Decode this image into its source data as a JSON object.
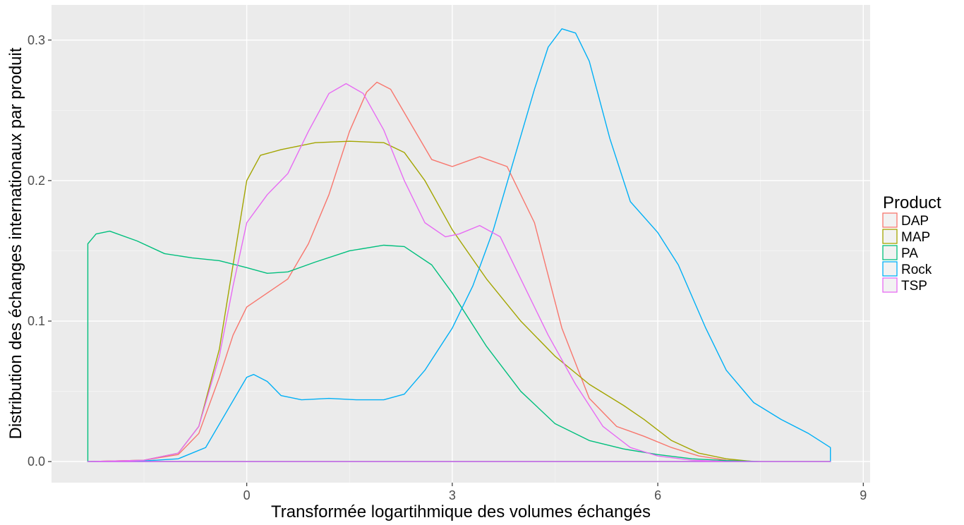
{
  "chart_data": {
    "type": "area",
    "xlabel": "Transformée logartihmique des volumes échangés",
    "ylabel": "Distribution des échanges internationaux par produit",
    "xlim": [
      -2.85,
      9.1
    ],
    "ylim": [
      -0.015,
      0.325
    ],
    "x_ticks": [
      0,
      3,
      6,
      9
    ],
    "x_tick_labels": [
      "0",
      "3",
      "6",
      "9"
    ],
    "y_ticks": [
      0.0,
      0.1,
      0.2,
      0.3
    ],
    "y_tick_labels": [
      "0.0",
      "0.1",
      "0.2",
      "0.3"
    ],
    "grid": true,
    "legend": {
      "title": "Product",
      "position": "right"
    },
    "x_range": [
      -2.32,
      8.52
    ],
    "series": [
      {
        "name": "DAP",
        "color": "#F8766D",
        "points": [
          [
            -2.32,
            0
          ],
          [
            -1.5,
            0.001
          ],
          [
            -1.0,
            0.005
          ],
          [
            -0.7,
            0.02
          ],
          [
            -0.4,
            0.06
          ],
          [
            -0.2,
            0.09
          ],
          [
            0,
            0.11
          ],
          [
            0.3,
            0.12
          ],
          [
            0.6,
            0.13
          ],
          [
            0.9,
            0.155
          ],
          [
            1.2,
            0.19
          ],
          [
            1.5,
            0.235
          ],
          [
            1.75,
            0.263
          ],
          [
            1.9,
            0.27
          ],
          [
            2.1,
            0.265
          ],
          [
            2.4,
            0.24
          ],
          [
            2.7,
            0.215
          ],
          [
            3.0,
            0.21
          ],
          [
            3.4,
            0.217
          ],
          [
            3.8,
            0.21
          ],
          [
            4.2,
            0.17
          ],
          [
            4.6,
            0.095
          ],
          [
            5.0,
            0.045
          ],
          [
            5.4,
            0.025
          ],
          [
            5.8,
            0.018
          ],
          [
            6.2,
            0.01
          ],
          [
            6.6,
            0.004
          ],
          [
            7.0,
            0.001
          ],
          [
            7.5,
            0.0
          ],
          [
            8.52,
            0.0
          ]
        ]
      },
      {
        "name": "MAP",
        "color": "#A3A500",
        "points": [
          [
            -2.32,
            0
          ],
          [
            -1.5,
            0.001
          ],
          [
            -1.0,
            0.006
          ],
          [
            -0.7,
            0.025
          ],
          [
            -0.4,
            0.08
          ],
          [
            -0.2,
            0.14
          ],
          [
            0,
            0.2
          ],
          [
            0.2,
            0.218
          ],
          [
            0.5,
            0.222
          ],
          [
            1.0,
            0.227
          ],
          [
            1.5,
            0.228
          ],
          [
            2.0,
            0.227
          ],
          [
            2.3,
            0.22
          ],
          [
            2.6,
            0.2
          ],
          [
            3.0,
            0.165
          ],
          [
            3.5,
            0.13
          ],
          [
            4.0,
            0.1
          ],
          [
            4.5,
            0.075
          ],
          [
            5.0,
            0.055
          ],
          [
            5.5,
            0.04
          ],
          [
            5.8,
            0.03
          ],
          [
            6.2,
            0.015
          ],
          [
            6.6,
            0.006
          ],
          [
            7.0,
            0.002
          ],
          [
            7.4,
            0.0
          ],
          [
            8.52,
            0.0
          ]
        ]
      },
      {
        "name": "PA",
        "color": "#00BF7D",
        "points": [
          [
            -2.32,
            0
          ],
          [
            -2.32,
            0.155
          ],
          [
            -2.2,
            0.162
          ],
          [
            -2.0,
            0.164
          ],
          [
            -1.6,
            0.157
          ],
          [
            -1.2,
            0.148
          ],
          [
            -0.8,
            0.145
          ],
          [
            -0.4,
            0.143
          ],
          [
            0,
            0.138
          ],
          [
            0.3,
            0.134
          ],
          [
            0.6,
            0.135
          ],
          [
            1.0,
            0.142
          ],
          [
            1.5,
            0.15
          ],
          [
            2.0,
            0.154
          ],
          [
            2.3,
            0.153
          ],
          [
            2.7,
            0.14
          ],
          [
            3.0,
            0.12
          ],
          [
            3.5,
            0.082
          ],
          [
            4.0,
            0.05
          ],
          [
            4.5,
            0.027
          ],
          [
            5.0,
            0.015
          ],
          [
            5.5,
            0.009
          ],
          [
            6.0,
            0.005
          ],
          [
            6.5,
            0.002
          ],
          [
            7.0,
            0.0007
          ],
          [
            7.5,
            0.0
          ],
          [
            8.52,
            0.0
          ]
        ]
      },
      {
        "name": "Rock",
        "color": "#00B0F6",
        "points": [
          [
            -2.32,
            0
          ],
          [
            -1.5,
            0.0005
          ],
          [
            -1.0,
            0.002
          ],
          [
            -0.6,
            0.01
          ],
          [
            -0.3,
            0.035
          ],
          [
            0,
            0.06
          ],
          [
            0.1,
            0.062
          ],
          [
            0.3,
            0.057
          ],
          [
            0.5,
            0.047
          ],
          [
            0.8,
            0.044
          ],
          [
            1.2,
            0.045
          ],
          [
            1.6,
            0.044
          ],
          [
            2.0,
            0.044
          ],
          [
            2.3,
            0.048
          ],
          [
            2.6,
            0.065
          ],
          [
            3.0,
            0.095
          ],
          [
            3.3,
            0.125
          ],
          [
            3.6,
            0.165
          ],
          [
            3.9,
            0.215
          ],
          [
            4.2,
            0.265
          ],
          [
            4.4,
            0.295
          ],
          [
            4.6,
            0.308
          ],
          [
            4.8,
            0.305
          ],
          [
            5.0,
            0.285
          ],
          [
            5.3,
            0.23
          ],
          [
            5.6,
            0.185
          ],
          [
            6.0,
            0.163
          ],
          [
            6.3,
            0.14
          ],
          [
            6.7,
            0.095
          ],
          [
            7.0,
            0.065
          ],
          [
            7.4,
            0.042
          ],
          [
            7.8,
            0.03
          ],
          [
            8.2,
            0.02
          ],
          [
            8.52,
            0.01
          ],
          [
            8.52,
            0
          ]
        ]
      },
      {
        "name": "TSP",
        "color": "#E76BF3",
        "points": [
          [
            -2.32,
            0
          ],
          [
            -1.5,
            0.001
          ],
          [
            -1.0,
            0.006
          ],
          [
            -0.7,
            0.025
          ],
          [
            -0.4,
            0.075
          ],
          [
            -0.2,
            0.125
          ],
          [
            0,
            0.17
          ],
          [
            0.3,
            0.19
          ],
          [
            0.6,
            0.205
          ],
          [
            0.9,
            0.235
          ],
          [
            1.2,
            0.262
          ],
          [
            1.45,
            0.269
          ],
          [
            1.7,
            0.262
          ],
          [
            2.0,
            0.236
          ],
          [
            2.3,
            0.2
          ],
          [
            2.6,
            0.17
          ],
          [
            2.9,
            0.16
          ],
          [
            3.1,
            0.162
          ],
          [
            3.4,
            0.168
          ],
          [
            3.7,
            0.16
          ],
          [
            4.0,
            0.13
          ],
          [
            4.4,
            0.09
          ],
          [
            4.8,
            0.055
          ],
          [
            5.2,
            0.025
          ],
          [
            5.6,
            0.01
          ],
          [
            6.0,
            0.004
          ],
          [
            6.5,
            0.001
          ],
          [
            7.0,
            0.0
          ],
          [
            8.52,
            0.0
          ]
        ]
      }
    ]
  }
}
